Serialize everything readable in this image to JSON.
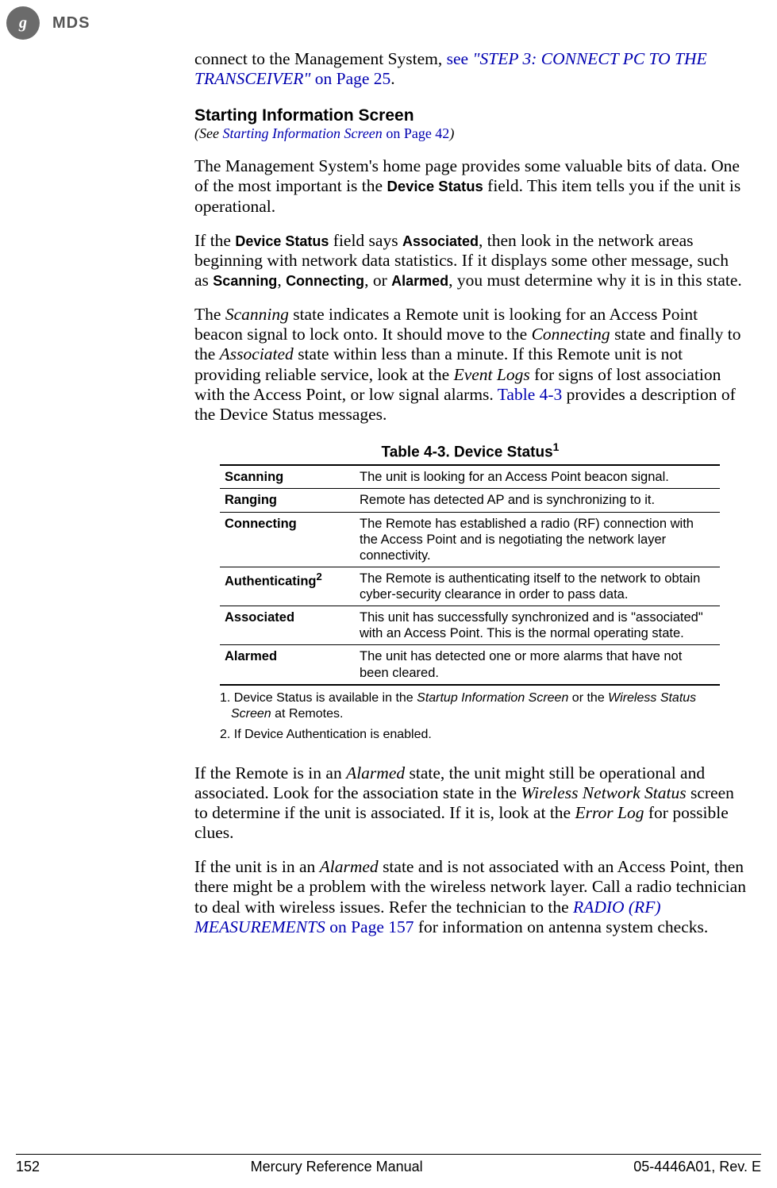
{
  "header": {
    "ge_logo_text": "g",
    "mds_label": "MDS"
  },
  "intro": {
    "prefix": "connect to the Management System, ",
    "see_text": "see ",
    "link_italic": "\"STEP 3: CONNECT PC TO THE TRANSCEIVER\"",
    "link_suffix": " on Page 25",
    "period": "."
  },
  "section": {
    "heading": "Starting Information Screen",
    "subref_open": "(",
    "subref_see": "See ",
    "subref_link": "Starting Information Screen",
    "subref_page": " on Page 42",
    "subref_close": ")"
  },
  "p1": {
    "t1": "The Management System's home page provides some valuable bits of data. One of the most important is the ",
    "b1": "Device Status",
    "t2": " field. This item tells you if the unit is operational."
  },
  "p2": {
    "t1": "If the ",
    "b1": "Device Status",
    "t2": " field says ",
    "b2": "Associated",
    "t3": ", then look in the network areas beginning with network data statistics. If it displays some other mes­sage, such as ",
    "b3": "Scanning",
    "t4": ", ",
    "b4": "Connecting",
    "t5": ", or ",
    "b5": "Alarmed",
    "t6": ", you must determine why it is in this state."
  },
  "p3": {
    "t1": "The ",
    "i1": "Scanning",
    "t2": " state indicates a Remote unit is looking for an Access Point beacon signal to lock onto. It should move to the ",
    "i2": "Connecting",
    "t3": " state and finally to the ",
    "i3": "Associated",
    "t4": " state within less than a minute. If this Remote unit is not providing reliable service, look at the ",
    "i4": "Event Logs",
    "t5": " for signs of lost association with the Access Point, or low signal alarms. ",
    "l1": "Table 4-3",
    "t6": " provides a description of the Device Status messages."
  },
  "table": {
    "caption_prefix": "Table 4-3. Device Status",
    "caption_sup": "1",
    "rows": [
      {
        "status": "Scanning",
        "desc": "The unit is looking for an Access Point beacon signal."
      },
      {
        "status": "Ranging",
        "desc": "Remote has detected AP and is synchronizing to it."
      },
      {
        "status": "Connecting",
        "desc": "The Remote has established a radio (RF) connection with the Access Point and is negotiating the network layer connectivity."
      },
      {
        "status": "Authenticating",
        "sup": "2",
        "desc": "The Remote is authenticating itself to the network to obtain cyber-security clearance in order to pass data."
      },
      {
        "status": "Associated",
        "desc": "This unit has successfully synchronized and is \"associated\" with an Access Point. This is the normal operating state."
      },
      {
        "status": "Alarmed",
        "desc": "The unit has detected one or more alarms that have not been cleared."
      }
    ],
    "fn1_a": "1. Device Status is available in the ",
    "fn1_i1": "Startup Information Screen",
    "fn1_b": " or the ",
    "fn1_i2": "Wireless Status Screen",
    "fn1_c": " at Remotes.",
    "fn2": "2. If Device Authentication is enabled."
  },
  "p4": {
    "t1": "If the Remote is in an ",
    "i1": "Alarmed",
    "t2": " state, the unit might still be operational and associated. Look for the association state in the ",
    "i2": "Wireless Network Status",
    "t3": " screen to determine if the unit is associated. If it is, look at the ",
    "i3": "Error Log",
    "t4": " for possible clues."
  },
  "p5": {
    "t1": "If the unit is in an ",
    "i1": "Alarmed",
    "t2": " state and is not associated with an Access Point, then there might be a problem with the wireless network layer. Call a radio technician to deal with wireless issues. Refer the technician to the ",
    "l1": "RADIO (RF) MEASUREMENTS",
    "lp": " on Page 157",
    "t3": " for information on antenna system checks."
  },
  "footer": {
    "page": "152",
    "title": "Mercury Reference Manual",
    "doc": "05-4446A01, Rev. E"
  }
}
